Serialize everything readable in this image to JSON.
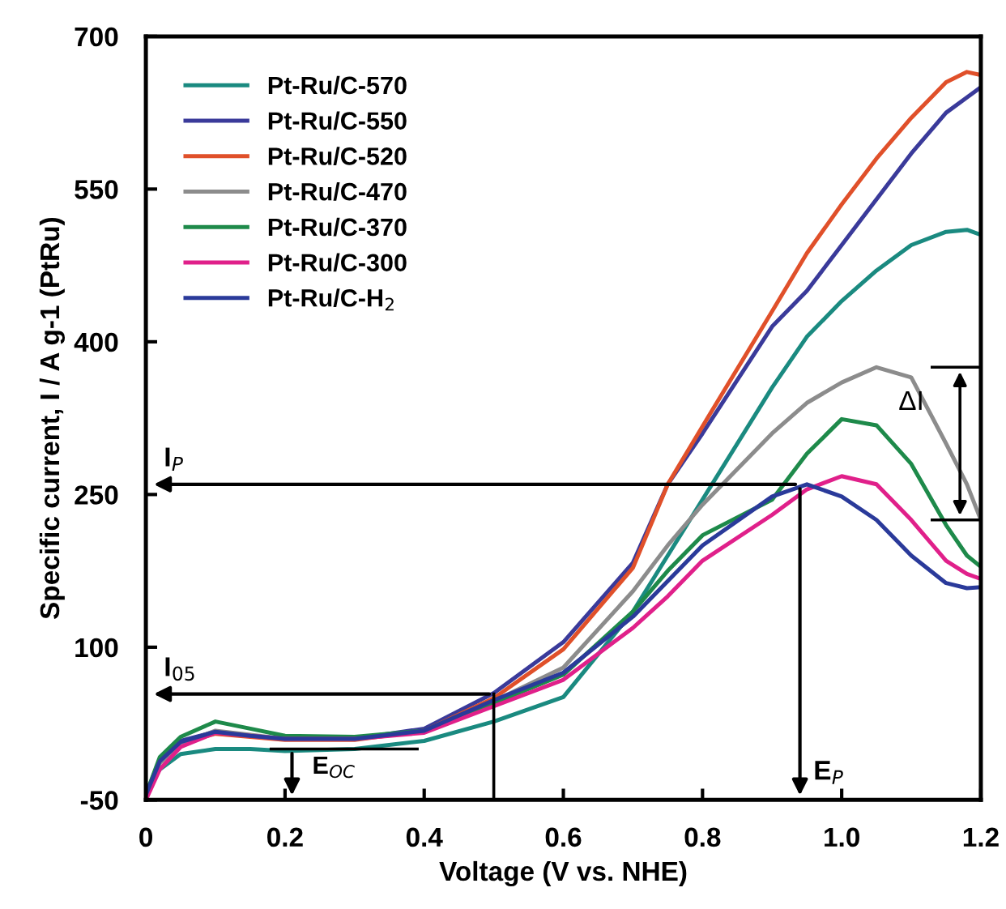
{
  "chart_data": {
    "type": "line",
    "xlabel": "Voltage (V vs. NHE)",
    "ylabel": "Specific current, I / A g-1 (PtRu)",
    "xlim": [
      0,
      1.2
    ],
    "ylim": [
      -50,
      700
    ],
    "xticks": [
      {
        "value": 0,
        "label": "0"
      },
      0.2,
      0.4,
      0.6,
      0.8,
      {
        "value": 1.0,
        "label": "1.0"
      },
      1.2
    ],
    "yticks": [
      -50,
      100,
      250,
      400,
      550,
      700
    ],
    "grid": false,
    "legend": "top left",
    "marker": "none",
    "line_style": "solid",
    "x": [
      0,
      0.02,
      0.05,
      0.1,
      0.15,
      0.2,
      0.3,
      0.4,
      0.5,
      0.6,
      0.7,
      0.75,
      0.8,
      0.9,
      0.95,
      1.0,
      1.05,
      1.1,
      1.15,
      1.18,
      1.2
    ],
    "series": [
      {
        "name": "Pt-Ru/C-570",
        "color": "#1a8a80",
        "values": [
          -40,
          -20,
          -5,
          0,
          0,
          -2,
          0,
          8,
          27,
          51,
          135,
          190,
          245,
          355,
          405,
          440,
          470,
          495,
          508,
          510,
          505
        ]
      },
      {
        "name": "Pt-Ru/C-550",
        "color": "#3a3a9a",
        "values": [
          -45,
          -10,
          8,
          17,
          13,
          10,
          10,
          20,
          55,
          105,
          183,
          260,
          310,
          415,
          450,
          495,
          540,
          585,
          625,
          640,
          650
        ]
      },
      {
        "name": "Pt-Ru/C-520",
        "color": "#e0502a",
        "values": [
          null,
          null,
          6,
          15,
          12,
          9,
          9,
          18,
          50,
          98,
          178,
          260,
          317,
          430,
          487,
          535,
          580,
          620,
          655,
          665,
          662
        ]
      },
      {
        "name": "Pt-Ru/C-470",
        "color": "#8c8c8c",
        "values": [
          -45,
          -14,
          5,
          18,
          14,
          10,
          10,
          17,
          47,
          80,
          155,
          200,
          240,
          310,
          340,
          360,
          375,
          365,
          300,
          260,
          225
        ]
      },
      {
        "name": "Pt-Ru/C-370",
        "color": "#1e8a4a",
        "values": [
          -45,
          -8,
          12,
          27,
          20,
          13,
          12,
          18,
          45,
          73,
          135,
          175,
          210,
          245,
          290,
          324,
          318,
          280,
          220,
          190,
          179
        ]
      },
      {
        "name": "Pt-Ru/C-300",
        "color": "#e0208a",
        "values": [
          -50,
          -20,
          2,
          16,
          13,
          10,
          10,
          16,
          42,
          68,
          119,
          150,
          185,
          230,
          255,
          268,
          260,
          225,
          185,
          172,
          167
        ]
      },
      {
        "name": "Pt-Ru/C-H$_{2}$",
        "color": "#2a3a9a",
        "values": [
          -45,
          -12,
          7,
          17,
          13,
          10,
          10,
          18,
          48,
          75,
          130,
          165,
          200,
          248,
          260,
          248,
          225,
          190,
          163,
          158,
          159
        ]
      }
    ],
    "annotations": [
      {
        "text": "I$_{P}$",
        "x": 0.94,
        "y": 260
      },
      {
        "text": "E$_{P}$",
        "x": 0.94,
        "y": 260
      },
      {
        "text": "I$_{05}$",
        "x": 0.5,
        "y": 54
      },
      {
        "text": "E$_{OC}$",
        "x": 0.21,
        "y": 0
      },
      "ΔI"
    ]
  }
}
